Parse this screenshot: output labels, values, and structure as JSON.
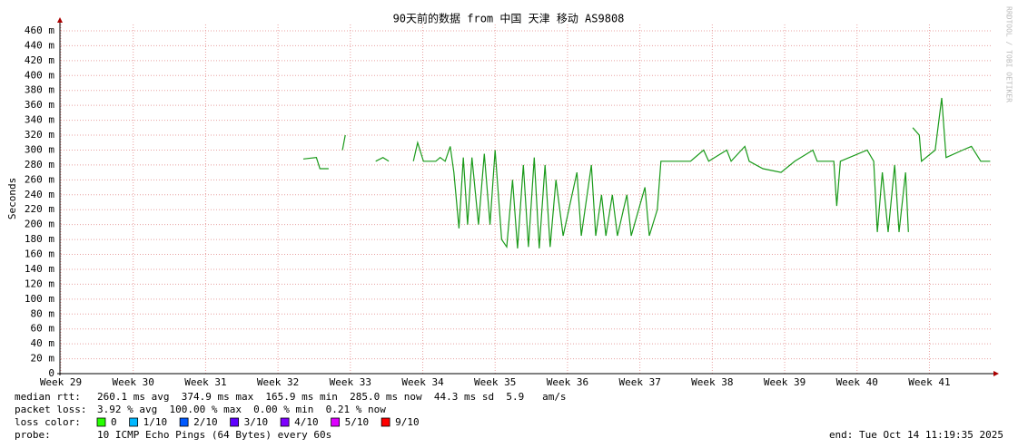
{
  "chart_data": {
    "type": "line",
    "title": "90天前的数据 from 中国 天津 移动 AS9808",
    "y_label": "Seconds",
    "watermark": "RRDTOOL / TOBI OETIKER",
    "color": "#1a9a1a",
    "grid": true,
    "xlim": [
      29,
      41.86
    ],
    "xticks": [
      {
        "value": 29,
        "label": "Week 29"
      },
      {
        "value": 30,
        "label": "Week 30"
      },
      {
        "value": 31,
        "label": "Week 31"
      },
      {
        "value": 32,
        "label": "Week 32"
      },
      {
        "value": 33,
        "label": "Week 33"
      },
      {
        "value": 34,
        "label": "Week 34"
      },
      {
        "value": 35,
        "label": "Week 35"
      },
      {
        "value": 36,
        "label": "Week 36"
      },
      {
        "value": 37,
        "label": "Week 37"
      },
      {
        "value": 38,
        "label": "Week 38"
      },
      {
        "value": 39,
        "label": "Week 39"
      },
      {
        "value": 40,
        "label": "Week 40"
      },
      {
        "value": 41,
        "label": "Week 41"
      }
    ],
    "ylim": [
      0,
      0.46
    ],
    "yticks": [
      0,
      {
        "value": 0.02,
        "label": "20 m"
      },
      {
        "value": 0.04,
        "label": "40 m"
      },
      {
        "value": 0.06,
        "label": "60 m"
      },
      {
        "value": 0.08,
        "label": "80 m"
      },
      {
        "value": 0.1,
        "label": "100 m"
      },
      {
        "value": 0.12,
        "label": "120 m"
      },
      {
        "value": 0.14,
        "label": "140 m"
      },
      {
        "value": 0.16,
        "label": "160 m"
      },
      {
        "value": 0.18,
        "label": "180 m"
      },
      {
        "value": 0.2,
        "label": "200 m"
      },
      {
        "value": 0.22,
        "label": "220 m"
      },
      {
        "value": 0.24,
        "label": "240 m"
      },
      {
        "value": 0.26,
        "label": "260 m"
      },
      {
        "value": 0.28,
        "label": "280 m"
      },
      {
        "value": 0.3,
        "label": "300 m"
      },
      {
        "value": 0.32,
        "label": "320 m"
      },
      {
        "value": 0.34,
        "label": "340 m"
      },
      {
        "value": 0.36,
        "label": "360 m"
      },
      {
        "value": 0.38,
        "label": "380 m"
      },
      {
        "value": 0.4,
        "label": "400 m"
      },
      {
        "value": 0.42,
        "label": "420 m"
      },
      {
        "value": 0.44,
        "label": "440 m"
      },
      {
        "value": 0.46,
        "label": "460 m"
      }
    ],
    "x": [
      32.35,
      32.53,
      32.58,
      32.7,
      32.8,
      32.89,
      32.93,
      33.1,
      33.35,
      33.45,
      33.53,
      33.7,
      33.87,
      33.93,
      34.01,
      34.18,
      34.24,
      34.31,
      34.38,
      34.43,
      34.5,
      34.56,
      34.62,
      34.68,
      34.77,
      34.85,
      34.93,
      35.0,
      35.09,
      35.16,
      35.24,
      35.31,
      35.39,
      35.46,
      35.54,
      35.61,
      35.69,
      35.76,
      35.84,
      35.94,
      36.13,
      36.19,
      36.33,
      36.39,
      36.47,
      36.53,
      36.62,
      36.69,
      36.82,
      36.88,
      37.07,
      37.13,
      37.24,
      37.29,
      37.7,
      37.88,
      37.95,
      38.2,
      38.26,
      38.45,
      38.51,
      38.7,
      38.95,
      39.14,
      39.39,
      39.45,
      39.68,
      39.72,
      39.77,
      40.14,
      40.23,
      40.28,
      40.35,
      40.43,
      40.52,
      40.58,
      40.67,
      40.71,
      40.74,
      40.77,
      40.86,
      40.89,
      41.08,
      41.17,
      41.23,
      41.46,
      41.58,
      41.71,
      41.84
    ],
    "values": [
      0.288,
      0.29,
      0.275,
      0.275,
      null,
      0.3,
      0.32,
      null,
      0.285,
      0.29,
      0.285,
      null,
      0.285,
      0.31,
      0.285,
      0.285,
      0.29,
      0.285,
      0.305,
      0.27,
      0.195,
      0.29,
      0.2,
      0.29,
      0.2,
      0.295,
      0.2,
      0.3,
      0.18,
      0.17,
      0.26,
      0.168,
      0.28,
      0.17,
      0.29,
      0.168,
      0.28,
      0.17,
      0.26,
      0.185,
      0.27,
      0.185,
      0.28,
      0.185,
      0.24,
      0.185,
      0.24,
      0.185,
      0.24,
      0.185,
      0.25,
      0.185,
      0.22,
      0.285,
      0.285,
      0.3,
      0.285,
      0.3,
      0.285,
      0.305,
      0.285,
      0.275,
      0.27,
      0.285,
      0.3,
      0.285,
      0.285,
      0.225,
      0.285,
      0.3,
      0.285,
      0.19,
      0.27,
      0.19,
      0.28,
      0.19,
      0.27,
      0.19,
      null,
      0.33,
      0.32,
      0.285,
      0.3,
      0.37,
      0.29,
      0.3,
      0.305,
      0.285,
      0.285
    ],
    "stats": [
      {
        "label": "median rtt:",
        "text": "260.1 ms avg  374.9 ms max  165.9 ms min  285.0 ms now  44.3 ms sd  5.9   am/s"
      },
      {
        "label": "packet loss:",
        "text": "3.92 % avg  100.00 % max  0.00 % min  0.21 % now"
      }
    ],
    "loss_legend": {
      "label": "loss color:",
      "items": [
        {
          "name": "0",
          "color": "#26ff00"
        },
        {
          "name": "1/10",
          "color": "#00b8ff"
        },
        {
          "name": "2/10",
          "color": "#0059ff"
        },
        {
          "name": "3/10",
          "color": "#5e00ff"
        },
        {
          "name": "4/10",
          "color": "#7e00ff"
        },
        {
          "name": "5/10",
          "color": "#dd00ff"
        },
        {
          "name": "9/10",
          "color": "#ff0000"
        }
      ]
    },
    "probe": {
      "label": "probe:",
      "text": "10 ICMP Echo Pings (64 Bytes) every 60s"
    },
    "end": "end: Tue Oct 14 11:19:35 2025"
  }
}
